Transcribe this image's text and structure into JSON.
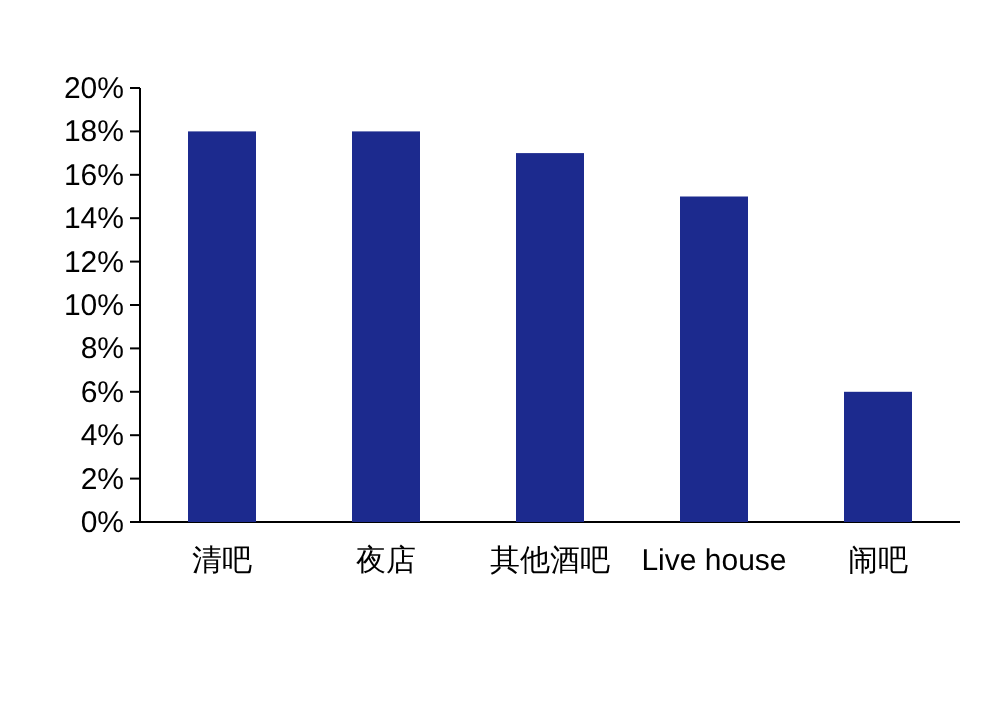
{
  "chart_data": {
    "type": "bar",
    "categories": [
      "清吧",
      "夜店",
      "其他酒吧",
      "Live house",
      "闹吧"
    ],
    "values": [
      18,
      18,
      17,
      15,
      6
    ],
    "color": "#1c2a8e",
    "ylim": [
      0,
      20
    ],
    "yticks": [
      {
        "value": 0,
        "label": "0%"
      },
      {
        "value": 2,
        "label": "2%"
      },
      {
        "value": 4,
        "label": "4%"
      },
      {
        "value": 6,
        "label": "6%"
      },
      {
        "value": 8,
        "label": "8%"
      },
      {
        "value": 10,
        "label": "10%"
      },
      {
        "value": 12,
        "label": "12%"
      },
      {
        "value": 14,
        "label": "14%"
      },
      {
        "value": 16,
        "label": "16%"
      },
      {
        "value": 18,
        "label": "18%"
      },
      {
        "value": 20,
        "label": "20%"
      }
    ],
    "grid": false
  }
}
